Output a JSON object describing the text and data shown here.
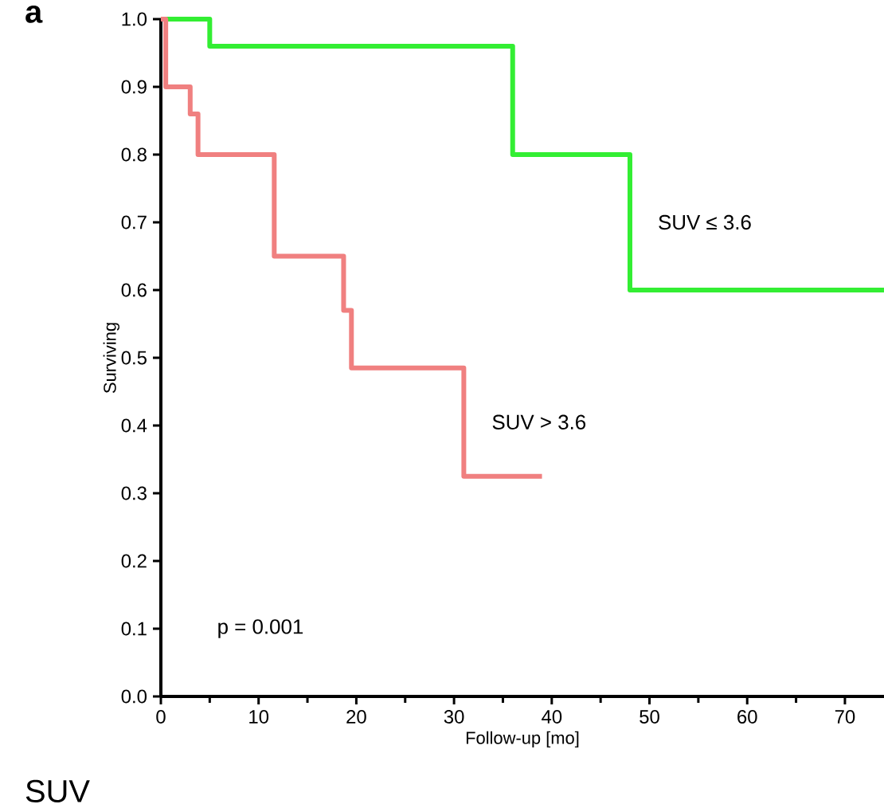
{
  "chart_data": {
    "type": "step",
    "xlabel": "Follow-up [mo]",
    "ylabel": "Surviving",
    "xlim": [
      0,
      74
    ],
    "ylim": [
      0,
      1
    ],
    "xticks": [
      0,
      10,
      20,
      30,
      40,
      50,
      60,
      70
    ],
    "yticks": [
      {
        "value": 0,
        "label": "0.0"
      },
      {
        "value": 0.1,
        "label": "0.1"
      },
      {
        "value": 0.2,
        "label": "0.2"
      },
      {
        "value": 0.3,
        "label": "0.3"
      },
      {
        "value": 0.4,
        "label": "0.4"
      },
      {
        "value": 0.5,
        "label": "0.5"
      },
      {
        "value": 0.6,
        "label": "0.6"
      },
      {
        "value": 0.7,
        "label": "0.7"
      },
      {
        "value": 0.8,
        "label": "0.8"
      },
      {
        "value": 0.9,
        "label": "0.9"
      },
      {
        "value": 1,
        "label": "1.0"
      }
    ],
    "series": [
      {
        "name": "SUV ≤ 3.6",
        "color": "#33ee33",
        "x": [
          0,
          5,
          36,
          48,
          74
        ],
        "values": [
          1.0,
          0.96,
          0.8,
          0.6,
          0.6
        ]
      },
      {
        "name": "SUV > 3.6",
        "color": "#f08080",
        "x": [
          0,
          0.5,
          3,
          3.8,
          11.6,
          18.7,
          19.5,
          31,
          39
        ],
        "values": [
          1.0,
          0.9,
          0.86,
          0.8,
          0.65,
          0.57,
          0.485,
          0.325,
          0.325
        ]
      }
    ],
    "annotations": [
      "a",
      "p = 0.001",
      "SUV"
    ],
    "grid": false,
    "legend": false,
    "marker": "none",
    "line_style": "solid"
  }
}
